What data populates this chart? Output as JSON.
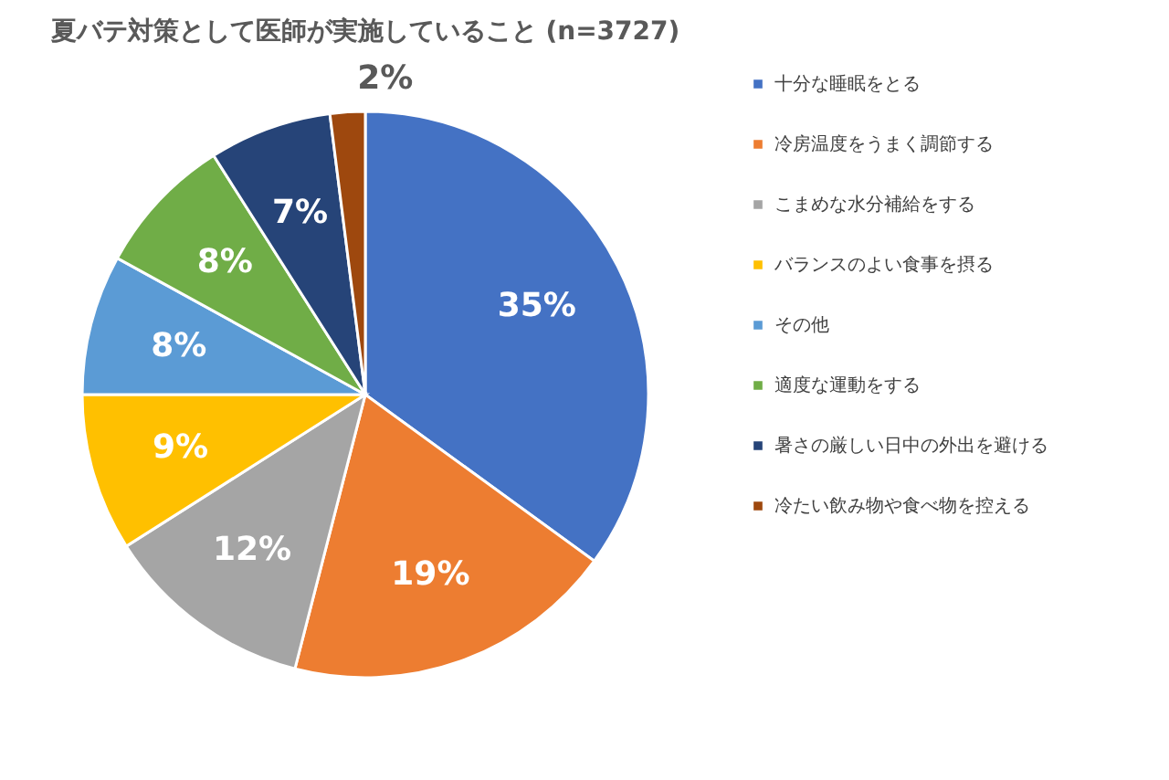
{
  "chart_data": {
    "type": "pie",
    "title": "夏バテ対策として医師が実施していること (n=3727)",
    "categories": [
      "十分な睡眠をとる",
      "冷房温度をうまく調節する",
      "こまめな水分補給をする",
      "バランスのよい食事を摂る",
      "その他",
      "適度な運動をする",
      "暑さの厳しい日中の外出を避ける",
      "冷たい飲み物や食べ物を控える"
    ],
    "values": [
      35,
      19,
      12,
      9,
      8,
      8,
      7,
      2
    ],
    "colors": [
      "#4472c4",
      "#ed7d31",
      "#a5a5a5",
      "#ffc000",
      "#5b9bd5",
      "#70ad47",
      "#264478",
      "#9e480e"
    ],
    "value_labels": [
      "35%",
      "19%",
      "12%",
      "9%",
      "8%",
      "8%",
      "7%",
      "2%"
    ],
    "legend": "right"
  }
}
